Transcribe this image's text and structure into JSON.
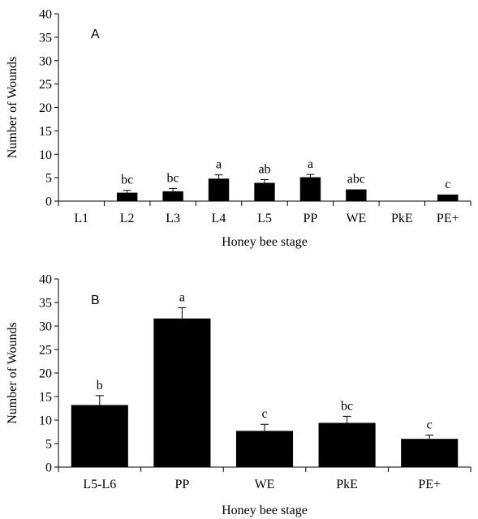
{
  "chart_data": [
    {
      "type": "bar",
      "panel_label": "A",
      "categories": [
        "L1",
        "L2",
        "L3",
        "L4",
        "L5",
        "PP",
        "WE",
        "PkE",
        "PE+"
      ],
      "values": [
        0,
        1.8,
        2.1,
        4.8,
        3.9,
        5.1,
        2.5,
        0,
        1.4
      ],
      "errors": [
        0,
        0.5,
        0.6,
        0.8,
        0.7,
        0.6,
        0,
        0,
        0
      ],
      "significance_labels": [
        "",
        "bc",
        "bc",
        "a",
        "ab",
        "a",
        "abc",
        "",
        "c"
      ],
      "xlabel": "Honey bee stage",
      "ylabel": "Number of Wounds",
      "ylim": [
        0,
        40
      ],
      "yticks": [
        "0",
        "5",
        "10",
        "15",
        "20",
        "25",
        "30",
        "35",
        "40"
      ],
      "grid": false,
      "bar_color": "#000000"
    },
    {
      "type": "bar",
      "panel_label": "B",
      "categories": [
        "L5-L6",
        "PP",
        "WE",
        "PkE",
        "PE+"
      ],
      "values": [
        13.2,
        31.6,
        7.7,
        9.4,
        6.0
      ],
      "errors": [
        2.0,
        2.3,
        1.4,
        1.4,
        0.8
      ],
      "significance_labels": [
        "b",
        "a",
        "c",
        "bc",
        "c"
      ],
      "xlabel": "Honey bee stage",
      "ylabel": "Number of Wounds",
      "ylim": [
        0,
        40
      ],
      "yticks": [
        "0",
        "5",
        "10",
        "15",
        "20",
        "25",
        "30",
        "35",
        "40"
      ],
      "grid": false,
      "bar_color": "#000000"
    }
  ]
}
